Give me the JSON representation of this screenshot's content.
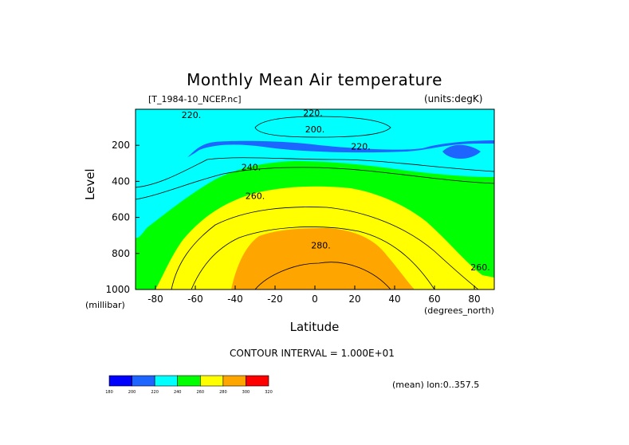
{
  "page": {
    "title": "Monthly Mean Air temperature",
    "file_label": "[T_1984-10_NCEP.nc]",
    "units_label": "(units:degK)",
    "contour_interval": "CONTOUR INTERVAL = 1.000E+01",
    "mean_note": "(mean) lon:0..357.5"
  },
  "chart_data": {
    "type": "heatmap",
    "subtype": "filled-contour",
    "title": "Monthly Mean Air temperature",
    "xlabel": "Latitude",
    "xlabel_unit": "(degrees_north)",
    "ylabel": "Level",
    "ylabel_unit": "(millibar)",
    "xlim": [
      -90,
      90
    ],
    "ylim": [
      1000,
      0
    ],
    "x_ticks": [
      -80,
      -60,
      -40,
      -20,
      0,
      20,
      40,
      60,
      80
    ],
    "y_ticks": [
      200,
      400,
      600,
      800,
      1000
    ],
    "contour_levels": [
      180,
      200,
      220,
      240,
      260,
      280,
      300,
      320
    ],
    "contour_interval": 10,
    "colorbar": {
      "labels": [
        "180",
        "200",
        "220",
        "240",
        "260",
        "280",
        "300",
        "320"
      ],
      "colors": [
        "#0000ff",
        "#1e64ff",
        "#00ffff",
        "#00ff00",
        "#ffff00",
        "#ffa500",
        "#ff0000"
      ]
    },
    "contour_labels": [
      {
        "text": "220.",
        "lat": -62,
        "level": 30
      },
      {
        "text": "220.",
        "lat": -1,
        "level": 20
      },
      {
        "text": "200.",
        "lat": 0,
        "level": 110
      },
      {
        "text": "220.",
        "lat": 23,
        "level": 205
      },
      {
        "text": "240.",
        "lat": -32,
        "level": 320
      },
      {
        "text": "260.",
        "lat": -30,
        "level": 480
      },
      {
        "text": "280.",
        "lat": 3,
        "level": 755
      },
      {
        "text": "260.",
        "lat": 83,
        "level": 875
      }
    ],
    "grid": false
  }
}
